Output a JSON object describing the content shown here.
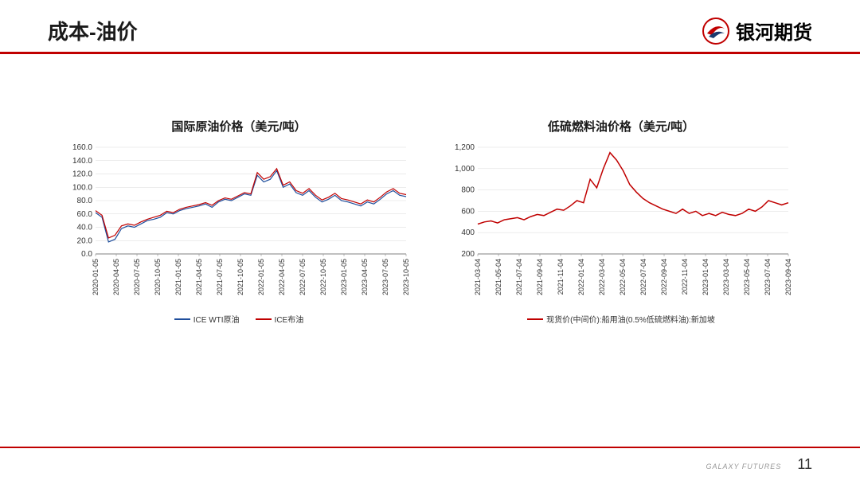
{
  "header": {
    "title": "成本-油价",
    "logo_text": "银河期货"
  },
  "footer": {
    "brand": "GALAXY FUTURES",
    "page": "11"
  },
  "colors": {
    "accent": "#c00000",
    "series_blue": "#1f4e9c",
    "series_red": "#c00000",
    "grid": "#d9d9d9",
    "axis": "#808080",
    "bg": "#ffffff"
  },
  "chart1": {
    "type": "line",
    "title": "国际原油价格（美元/吨）",
    "ylim": [
      0,
      160
    ],
    "ytick_step": 20,
    "yticks": [
      "0.0",
      "20.0",
      "40.0",
      "60.0",
      "80.0",
      "100.0",
      "120.0",
      "140.0",
      "160.0"
    ],
    "xlabels": [
      "2020-01-05",
      "2020-04-05",
      "2020-07-05",
      "2020-10-05",
      "2021-01-05",
      "2021-04-05",
      "2021-07-05",
      "2021-10-05",
      "2022-01-05",
      "2022-04-05",
      "2022-07-05",
      "2022-10-05",
      "2023-01-05",
      "2023-04-05",
      "2023-07-05",
      "2023-10-05"
    ],
    "series": [
      {
        "name": "ICE WTI原油",
        "color": "#1f4e9c",
        "data": [
          62,
          55,
          18,
          22,
          38,
          42,
          40,
          45,
          50,
          52,
          55,
          62,
          60,
          65,
          68,
          70,
          72,
          75,
          70,
          78,
          82,
          80,
          85,
          90,
          88,
          118,
          108,
          112,
          125,
          100,
          105,
          92,
          88,
          95,
          85,
          78,
          82,
          88,
          80,
          78,
          75,
          72,
          78,
          75,
          82,
          90,
          95,
          88,
          86
        ]
      },
      {
        "name": "ICE布油",
        "color": "#c00000",
        "data": [
          65,
          58,
          24,
          28,
          42,
          45,
          43,
          48,
          52,
          55,
          58,
          64,
          62,
          67,
          70,
          72,
          74,
          77,
          73,
          80,
          84,
          82,
          87,
          92,
          90,
          122,
          112,
          116,
          128,
          103,
          108,
          95,
          91,
          98,
          88,
          81,
          85,
          91,
          83,
          81,
          78,
          75,
          81,
          78,
          85,
          93,
          98,
          91,
          89
        ]
      }
    ],
    "legend_labels": [
      "ICE WTI原油",
      "ICE布油"
    ],
    "title_fontsize": 15,
    "label_fontsize": 10,
    "line_width": 1.2
  },
  "chart2": {
    "type": "line",
    "title": "低硫燃料油价格（美元/吨）",
    "ylim": [
      200,
      1200
    ],
    "ytick_step": 200,
    "yticks": [
      "200",
      "400",
      "600",
      "800",
      "1,000",
      "1,200"
    ],
    "xlabels": [
      "2021-03-04",
      "2021-05-04",
      "2021-07-04",
      "2021-09-04",
      "2021-11-04",
      "2022-01-04",
      "2022-03-04",
      "2022-05-04",
      "2022-07-04",
      "2022-09-04",
      "2022-11-04",
      "2023-01-04",
      "2023-03-04",
      "2023-05-04",
      "2023-07-04",
      "2023-09-04"
    ],
    "series": [
      {
        "name": "现货价(中间价):船用油(0.5%低硫燃料油):新加坡",
        "color": "#c00000",
        "data": [
          480,
          500,
          510,
          490,
          520,
          530,
          540,
          520,
          550,
          570,
          560,
          590,
          620,
          610,
          650,
          700,
          680,
          900,
          820,
          1000,
          1150,
          1080,
          980,
          850,
          780,
          720,
          680,
          650,
          620,
          600,
          580,
          620,
          580,
          600,
          560,
          580,
          560,
          590,
          570,
          560,
          580,
          620,
          600,
          640,
          700,
          680,
          660,
          680
        ]
      }
    ],
    "legend_labels": [
      "现货价(中间价):船用油(0.5%低硫燃料油):新加坡"
    ],
    "title_fontsize": 15,
    "label_fontsize": 10,
    "line_width": 1.5
  }
}
